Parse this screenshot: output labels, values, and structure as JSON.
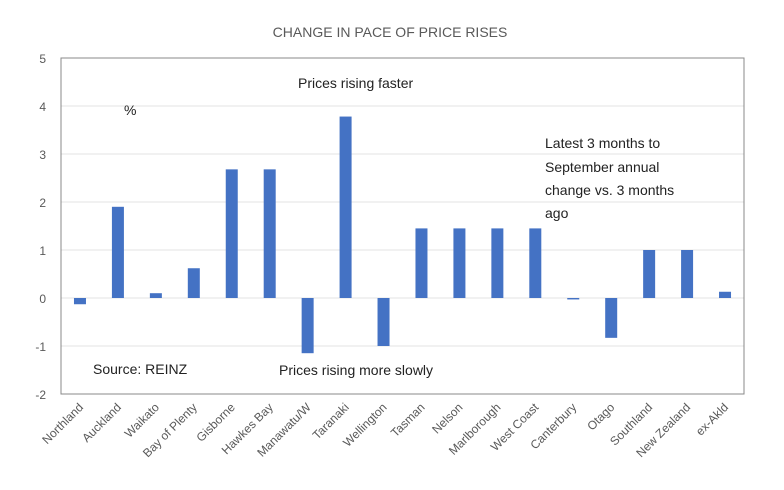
{
  "chart_data": {
    "type": "bar",
    "title": "CHANGE IN PACE OF PRICE RISES",
    "xlabel": "",
    "ylabel": "%",
    "ylim": [
      -2,
      5
    ],
    "yticks": [
      -2,
      -1,
      0,
      1,
      2,
      3,
      4,
      5
    ],
    "grid": true,
    "bar_color": "#4472c4",
    "categories": [
      "Northland",
      "Auckland",
      "Waikato",
      "Bay of Plenty",
      "Gisborne",
      "Hawkes Bay",
      "Manawatu/W",
      "Taranaki",
      "Wellington",
      "Tasman",
      "Nelson",
      "Marlborough",
      "West Coast",
      "Canterbury",
      "Otago",
      "Southland",
      "New Zealand",
      "ex-Akld"
    ],
    "values": [
      -0.13,
      1.9,
      0.1,
      0.62,
      2.68,
      2.68,
      -1.15,
      3.78,
      -1.0,
      1.45,
      1.45,
      1.45,
      1.45,
      -0.03,
      -0.83,
      1.0,
      1.0,
      0.13
    ],
    "annotations": {
      "unit": "%",
      "faster": "Prices rising faster",
      "slower": "Prices rising more slowly",
      "source": "Source: REINZ",
      "note": [
        "Latest 3 months to",
        "September annual",
        "change vs. 3 months",
        "ago"
      ]
    }
  }
}
